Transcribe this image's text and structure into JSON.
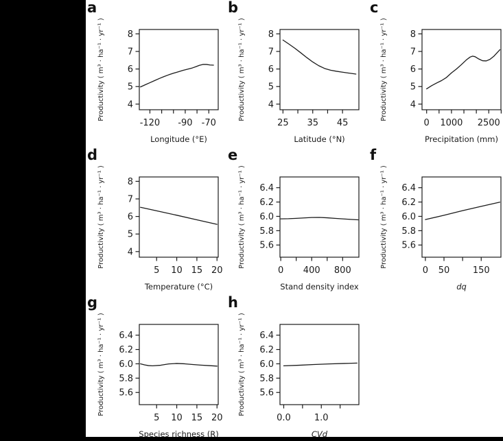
{
  "figure": {
    "colors": {
      "page_background": "#000000",
      "figure_background": "#ffffff",
      "axis": "#1a1a1a",
      "curve": "#1a1a1a",
      "text": "#1a1a1a"
    }
  },
  "chart_data": [
    {
      "id": "a",
      "type": "line",
      "xlabel": "Longitude (°E)",
      "xlabel_italic": false,
      "ylabel": "Productivity ( m³ · ha⁻¹ · yr⁻¹ )",
      "xlim": [
        -129,
        -62
      ],
      "ylim": [
        3.68,
        8.25
      ],
      "xticks": [
        -120,
        -110,
        -100,
        -90,
        -80,
        -70
      ],
      "xtick_labels": [
        "-120",
        "",
        "",
        "-90",
        "",
        "-70"
      ],
      "yticks": [
        4,
        5,
        6,
        7,
        8
      ],
      "ytick_labels": [
        "4",
        "5",
        "6",
        "7",
        "8"
      ],
      "grid": false,
      "legend": false,
      "x": [
        -128,
        -124,
        -120,
        -116,
        -112,
        -108,
        -104,
        -100,
        -96,
        -92,
        -88,
        -84,
        -81,
        -78,
        -75,
        -72,
        -69,
        -66
      ],
      "y": [
        4.98,
        5.1,
        5.22,
        5.34,
        5.46,
        5.57,
        5.67,
        5.76,
        5.84,
        5.92,
        5.99,
        6.06,
        6.13,
        6.21,
        6.26,
        6.26,
        6.23,
        6.22
      ]
    },
    {
      "id": "b",
      "type": "line",
      "xlabel": "Latitude (°N)",
      "xlabel_italic": false,
      "ylabel": "Productivity ( m³ · ha⁻¹ · yr⁻¹ )",
      "xlim": [
        24,
        50.5
      ],
      "ylim": [
        3.68,
        8.25
      ],
      "xticks": [
        25,
        30,
        35,
        40,
        45
      ],
      "xtick_labels": [
        "25",
        "",
        "35",
        "",
        "45"
      ],
      "yticks": [
        4,
        5,
        6,
        7,
        8
      ],
      "ytick_labels": [
        "4",
        "5",
        "6",
        "7",
        "8"
      ],
      "grid": false,
      "legend": false,
      "x": [
        25,
        27,
        29,
        31,
        33,
        35,
        37,
        39,
        41,
        43,
        45,
        47,
        49.5
      ],
      "y": [
        7.65,
        7.42,
        7.18,
        6.92,
        6.65,
        6.4,
        6.19,
        6.03,
        5.93,
        5.87,
        5.82,
        5.77,
        5.71
      ]
    },
    {
      "id": "c",
      "type": "line",
      "xlabel": "Precipitation (mm)",
      "xlabel_italic": false,
      "ylabel": "Productivity ( m³ · ha⁻¹ · yr⁻¹ )",
      "xlim": [
        -185,
        2990
      ],
      "ylim": [
        3.68,
        8.25
      ],
      "xticks": [
        0,
        500,
        1000,
        1500,
        2000,
        2500,
        3000
      ],
      "xtick_labels": [
        "0",
        "",
        "1000",
        "",
        "",
        "2500",
        ""
      ],
      "yticks": [
        4,
        5,
        6,
        7,
        8
      ],
      "ytick_labels": [
        "4",
        "5",
        "6",
        "7",
        "8"
      ],
      "grid": false,
      "legend": false,
      "x": [
        0,
        200,
        400,
        600,
        800,
        1000,
        1200,
        1400,
        1600,
        1750,
        1850,
        1950,
        2100,
        2250,
        2400,
        2550,
        2700,
        2850,
        2950
      ],
      "y": [
        4.87,
        5.05,
        5.2,
        5.34,
        5.52,
        5.78,
        6.0,
        6.25,
        6.52,
        6.68,
        6.73,
        6.7,
        6.57,
        6.47,
        6.46,
        6.55,
        6.72,
        6.95,
        7.1
      ]
    },
    {
      "id": "d",
      "type": "line",
      "xlabel": "Temperature (°C)",
      "xlabel_italic": false,
      "ylabel": "Productivity ( m³ · ha⁻¹ · yr⁻¹ )",
      "xlim": [
        0.7,
        20.3
      ],
      "ylim": [
        3.68,
        8.25
      ],
      "xticks": [
        5,
        10,
        15,
        20
      ],
      "xtick_labels": [
        "5",
        "10",
        "15",
        "20"
      ],
      "yticks": [
        4,
        5,
        6,
        7,
        8
      ],
      "ytick_labels": [
        "4",
        "5",
        "6",
        "7",
        "8"
      ],
      "grid": false,
      "legend": false,
      "x": [
        1,
        5,
        10,
        15,
        20
      ],
      "y": [
        6.52,
        6.32,
        6.07,
        5.81,
        5.55
      ]
    },
    {
      "id": "e",
      "type": "line",
      "xlabel": "Stand density index",
      "xlabel_italic": false,
      "ylabel": "Productivity ( m³ · ha⁻¹ · yr⁻¹ )",
      "xlim": [
        -10,
        1010
      ],
      "ylim": [
        5.43,
        6.55
      ],
      "xticks": [
        0,
        200,
        400,
        600,
        800
      ],
      "xtick_labels": [
        "0",
        "",
        "400",
        "",
        "800"
      ],
      "yticks": [
        5.6,
        5.8,
        6.0,
        6.2,
        6.4
      ],
      "ytick_labels": [
        "5.6",
        "5.8",
        "6.0",
        "6.2",
        "6.4"
      ],
      "grid": false,
      "legend": false,
      "x": [
        0,
        100,
        200,
        300,
        400,
        500,
        600,
        700,
        800,
        900,
        1000
      ],
      "y": [
        5.965,
        5.967,
        5.972,
        5.978,
        5.984,
        5.985,
        5.98,
        5.972,
        5.965,
        5.958,
        5.952
      ]
    },
    {
      "id": "f",
      "type": "line",
      "xlabel": "dq",
      "xlabel_italic": true,
      "ylabel": "Productivity ( m³ · ha⁻¹ · yr⁻¹ )",
      "xlim": [
        -9,
        203
      ],
      "ylim": [
        5.43,
        6.55
      ],
      "xticks": [
        0,
        50,
        100,
        150
      ],
      "xtick_labels": [
        "0",
        "50",
        "",
        "150"
      ],
      "yticks": [
        5.6,
        5.8,
        6.0,
        6.2,
        6.4
      ],
      "ytick_labels": [
        "5.6",
        "5.8",
        "6.0",
        "6.2",
        "6.4"
      ],
      "grid": false,
      "legend": false,
      "x": [
        0,
        50,
        100,
        150,
        200
      ],
      "y": [
        5.955,
        6.015,
        6.08,
        6.14,
        6.198
      ]
    },
    {
      "id": "g",
      "type": "line",
      "xlabel": "Species richness (R)",
      "xlabel_italic": false,
      "ylabel": "Productivity ( m³ · ha⁻¹ · yr⁻¹ )",
      "xlim": [
        0.7,
        20.3
      ],
      "ylim": [
        5.43,
        6.55
      ],
      "xticks": [
        5,
        10,
        15,
        20
      ],
      "xtick_labels": [
        "5",
        "10",
        "15",
        "20"
      ],
      "yticks": [
        5.6,
        5.8,
        6.0,
        6.2,
        6.4
      ],
      "ytick_labels": [
        "5.6",
        "5.8",
        "6.0",
        "6.2",
        "6.4"
      ],
      "grid": false,
      "legend": false,
      "x": [
        1,
        2,
        3,
        4,
        6,
        8,
        10,
        12,
        14,
        16,
        18,
        20
      ],
      "y": [
        6.0,
        5.985,
        5.975,
        5.972,
        5.98,
        5.998,
        6.005,
        6.0,
        5.99,
        5.982,
        5.975,
        5.968
      ]
    },
    {
      "id": "h",
      "type": "line",
      "xlabel": "CVd",
      "xlabel_italic": true,
      "ylabel": "Productivity ( m³ · ha⁻¹ · yr⁻¹ )",
      "xlim": [
        -0.1,
        2.0
      ],
      "ylim": [
        5.43,
        6.55
      ],
      "xticks": [
        0,
        0.5,
        1,
        1.5
      ],
      "xtick_labels": [
        "0.0",
        "",
        "1.0",
        ""
      ],
      "yticks": [
        5.6,
        5.8,
        6.0,
        6.2,
        6.4
      ],
      "ytick_labels": [
        "5.6",
        "5.8",
        "6.0",
        "6.2",
        "6.4"
      ],
      "grid": false,
      "legend": false,
      "x": [
        0,
        0.4,
        0.8,
        1.2,
        1.6,
        1.95
      ],
      "y": [
        5.972,
        5.98,
        5.99,
        5.998,
        6.005,
        6.01
      ]
    }
  ]
}
